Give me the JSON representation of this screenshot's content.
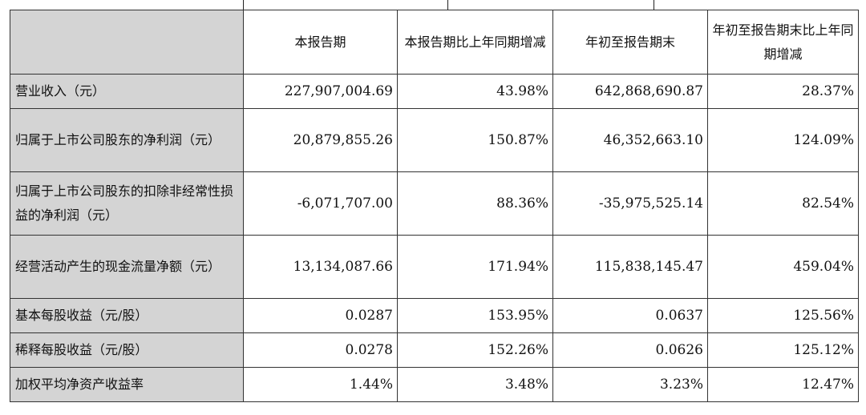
{
  "table": {
    "headers": [
      "",
      "本报告期",
      "本报告期比上年同期增减",
      "年初至报告期末",
      "年初至报告期末比上年同期增减"
    ],
    "rows": [
      {
        "label": "营业收入（元）",
        "values": [
          "227,907,004.69",
          "43.98%",
          "642,868,690.87",
          "28.37%"
        ]
      },
      {
        "label": "归属于上市公司股东的净利润（元）",
        "values": [
          "20,879,855.26",
          "150.87%",
          "46,352,663.10",
          "124.09%"
        ]
      },
      {
        "label": "归属于上市公司股东的扣除非经常性损益的净利润（元）",
        "values": [
          "-6,071,707.00",
          "88.36%",
          "-35,975,525.14",
          "82.54%"
        ]
      },
      {
        "label": "经营活动产生的现金流量净额（元）",
        "values": [
          "13,134,087.66",
          "171.94%",
          "115,838,145.47",
          "459.04%"
        ]
      },
      {
        "label": "基本每股收益（元/股）",
        "values": [
          "0.0287",
          "153.95%",
          "0.0637",
          "125.56%"
        ]
      },
      {
        "label": "稀释每股收益（元/股）",
        "values": [
          "0.0278",
          "152.26%",
          "0.0626",
          "125.12%"
        ]
      },
      {
        "label": "加权平均净资产收益率",
        "values": [
          "1.44%",
          "3.48%",
          "3.23%",
          "12.47%"
        ]
      }
    ]
  }
}
